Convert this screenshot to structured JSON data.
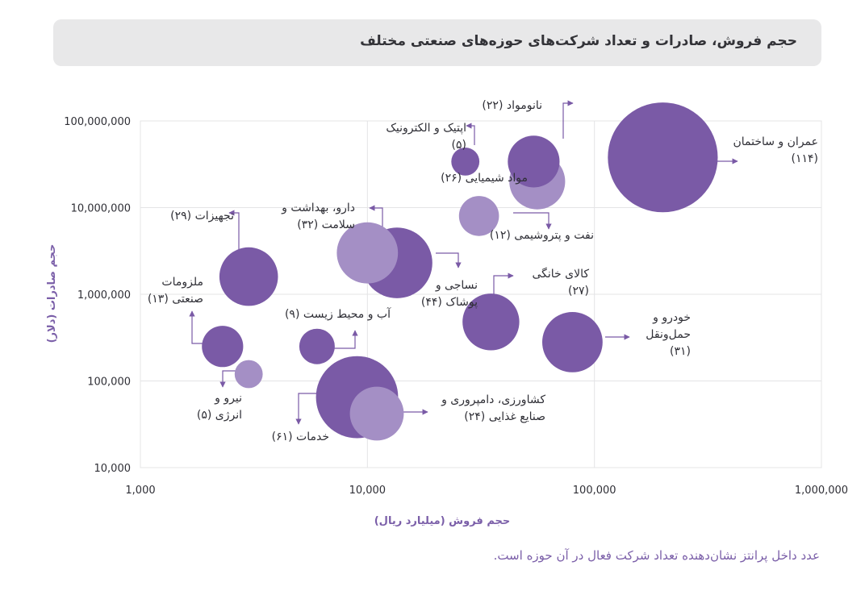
{
  "header": {
    "title": "حجم فروش، صادرات و تعداد شرکت‌های حوزه‌های صنعتی مختلف"
  },
  "footnote": "عدد داخل پرانتز نشان‌دهنده تعداد شرکت فعال در آن حوزه است.",
  "colors": {
    "dark_bubble": "#7a5aa6",
    "light_bubble": "#a48fc5",
    "axis_label": "#7a5ea8",
    "grid": "#e4e4e6",
    "text": "#2f2f36"
  },
  "chart_data": {
    "type": "scatter",
    "subtype": "bubble",
    "xlabel": "حجم فروش (میلیارد ریال)",
    "ylabel": "حجم صادرات (دلار)",
    "x_scale": "log",
    "y_scale": "log",
    "xlim": [
      1000,
      1000000
    ],
    "ylim": [
      10000,
      100000000
    ],
    "x_ticks": [
      "1,000",
      "10,000",
      "100,000",
      "1,000,000"
    ],
    "y_ticks": [
      "10,000",
      "100,000",
      "1,000,000",
      "10,000,000",
      "100,000,000"
    ],
    "grid": true,
    "points": [
      {
        "label": [
          "عمران و ساختمان",
          "(۱۱۴)"
        ],
        "x": 200000,
        "y": 38000000,
        "count": 114,
        "tone": "dark"
      },
      {
        "label": [
          "نانومواد (۲۲)"
        ],
        "x": 54000,
        "y": 34000000,
        "count": 22,
        "tone": "dark"
      },
      {
        "label": [
          "اپتیک و الکترونیک",
          "(۵)"
        ],
        "x": 27000,
        "y": 34000000,
        "count": 5,
        "tone": "dark"
      },
      {
        "label": [
          "مواد شیمیایی (۲۶)"
        ],
        "x": 56000,
        "y": 20000000,
        "count": 26,
        "tone": "light"
      },
      {
        "label": [
          "نفت و پتروشیمی (۱۲)"
        ],
        "x": 31000,
        "y": 8000000,
        "count": 12,
        "tone": "light"
      },
      {
        "label": [
          "تجهیزات (۲۹)"
        ],
        "x": 3000,
        "y": 1600000,
        "count": 29,
        "tone": "dark"
      },
      {
        "label": [
          "نساجی و",
          "پوشاک (۴۴)"
        ],
        "x": 13500,
        "y": 2300000,
        "count": 44,
        "tone": "dark"
      },
      {
        "label": [
          "دارو، بهداشت و",
          "سلامت (۳۲)"
        ],
        "x": 10000,
        "y": 3000000,
        "count": 32,
        "tone": "light"
      },
      {
        "label": [
          "کالای خانگی",
          "(۲۷)"
        ],
        "x": 35000,
        "y": 480000,
        "count": 27,
        "tone": "dark"
      },
      {
        "label": [
          "خودرو و",
          "حمل‌ونقل",
          "(۳۱)"
        ],
        "x": 80000,
        "y": 280000,
        "count": 31,
        "tone": "dark"
      },
      {
        "label": [
          "ملزومات",
          "صنعتی (۱۳)"
        ],
        "x": 2300,
        "y": 250000,
        "count": 13,
        "tone": "dark"
      },
      {
        "label": [
          "آب و محیط زیست (۹)"
        ],
        "x": 6000,
        "y": 250000,
        "count": 9,
        "tone": "dark"
      },
      {
        "label": [
          "نیرو و",
          "انرژی (۵)"
        ],
        "x": 3000,
        "y": 120000,
        "count": 5,
        "tone": "light"
      },
      {
        "label": [
          "خدمات (۶۱)"
        ],
        "x": 9000,
        "y": 65000,
        "count": 61,
        "tone": "dark"
      },
      {
        "label": [
          "کشاورزی، دامپروری و",
          "صنایع غذایی (۲۴)"
        ],
        "x": 11000,
        "y": 42000,
        "count": 24,
        "tone": "light"
      }
    ]
  }
}
